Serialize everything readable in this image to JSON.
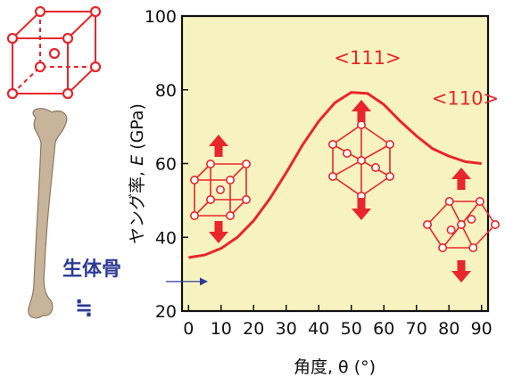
{
  "chart_data": {
    "type": "line",
    "xlabel": "角度, θ (°)",
    "ylabel_prefix": "ヤング率, ",
    "ylabel_symbol": "E",
    "ylabel_unit": " (GPa)",
    "xlim": [
      -2,
      92
    ],
    "ylim": [
      20,
      100
    ],
    "x_ticks": [
      0,
      10,
      20,
      30,
      40,
      50,
      60,
      70,
      80,
      90
    ],
    "y_ticks": [
      20,
      40,
      60,
      80,
      100
    ],
    "grid": false,
    "series": [
      {
        "x": [
          0,
          5,
          10,
          15,
          20,
          25,
          30,
          35,
          40,
          45,
          50,
          55,
          60,
          65,
          70,
          75,
          80,
          85,
          90
        ],
        "y": [
          34.5,
          35.2,
          37.0,
          40.0,
          44.5,
          50.5,
          57.5,
          65.0,
          71.5,
          76.5,
          79.3,
          79.0,
          76.0,
          71.5,
          67.5,
          64.0,
          62.0,
          60.5,
          60.0
        ],
        "color": "#e8262b"
      }
    ],
    "annotations": [
      {
        "text": "<111>",
        "x": 55,
        "y": 87
      },
      {
        "text": "<110>",
        "x": 85,
        "y": 76
      }
    ],
    "bone_reference": {
      "label": "生体骨",
      "approx": "≒",
      "y": 28
    }
  },
  "colors": {
    "plot_background": "#f7f3c0",
    "curve": "#e8262b",
    "bone_label": "#2c3b96",
    "bone": "#c8b49a"
  }
}
